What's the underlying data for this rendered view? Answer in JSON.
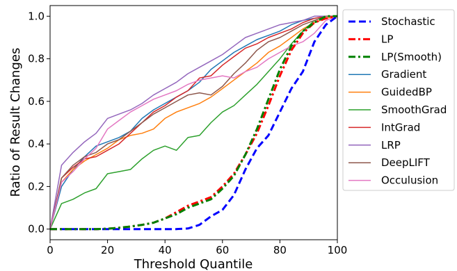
{
  "chart_data": {
    "type": "line",
    "title": "",
    "xlabel": "Threshold Quantile",
    "ylabel": "Ratio of Result Changes",
    "xlim": [
      0,
      100
    ],
    "ylim": [
      -0.05,
      1.05
    ],
    "xticks": [
      "0",
      "20",
      "40",
      "60",
      "80",
      "100"
    ],
    "yticks": [
      "0.0",
      "0.2",
      "0.4",
      "0.6",
      "0.8",
      "1.0"
    ],
    "grid": false,
    "legend_position": "right, outside plot",
    "x": [
      0,
      4,
      8,
      12,
      16,
      20,
      24,
      28,
      32,
      36,
      40,
      44,
      48,
      52,
      56,
      60,
      64,
      68,
      72,
      76,
      80,
      84,
      88,
      92,
      96,
      100
    ],
    "series": [
      {
        "name": "Stochastic",
        "color": "#0000ff",
        "style": "dashed",
        "values": [
          0,
          0,
          0,
          0,
          0,
          0,
          0,
          0,
          0,
          0,
          0,
          0,
          0.003,
          0.02,
          0.06,
          0.09,
          0.16,
          0.28,
          0.38,
          0.44,
          0.55,
          0.66,
          0.74,
          0.88,
          0.96,
          1.0
        ]
      },
      {
        "name": "LP",
        "color": "#ff0000",
        "style": "dashdot",
        "values": [
          0,
          0,
          0,
          0,
          0,
          0.002,
          0.006,
          0.012,
          0.02,
          0.03,
          0.05,
          0.08,
          0.11,
          0.13,
          0.15,
          0.2,
          0.26,
          0.35,
          0.45,
          0.58,
          0.72,
          0.84,
          0.92,
          0.97,
          0.99,
          1.0
        ]
      },
      {
        "name": "LP(Smooth)",
        "color": "#008000",
        "style": "dashdot",
        "values": [
          0,
          0,
          0,
          0,
          0,
          0.002,
          0.006,
          0.012,
          0.02,
          0.03,
          0.05,
          0.07,
          0.1,
          0.12,
          0.14,
          0.19,
          0.25,
          0.35,
          0.47,
          0.61,
          0.75,
          0.86,
          0.93,
          0.97,
          1.0,
          1.0
        ]
      },
      {
        "name": "Gradient",
        "color": "#1f77b4",
        "style": "solid",
        "values": [
          0,
          0.2,
          0.28,
          0.34,
          0.39,
          0.41,
          0.43,
          0.46,
          0.52,
          0.56,
          0.59,
          0.62,
          0.65,
          0.69,
          0.75,
          0.79,
          0.83,
          0.86,
          0.89,
          0.91,
          0.93,
          0.96,
          0.98,
          0.99,
          1.0,
          1.0
        ]
      },
      {
        "name": "GuidedBP",
        "color": "#ff7f0e",
        "style": "solid",
        "values": [
          0,
          0.22,
          0.28,
          0.32,
          0.35,
          0.38,
          0.42,
          0.44,
          0.45,
          0.47,
          0.52,
          0.55,
          0.57,
          0.59,
          0.62,
          0.66,
          0.7,
          0.74,
          0.78,
          0.83,
          0.86,
          0.9,
          0.94,
          0.97,
          0.99,
          1.0
        ]
      },
      {
        "name": "SmoothGrad",
        "color": "#2ca02c",
        "style": "solid",
        "values": [
          0,
          0.12,
          0.14,
          0.17,
          0.19,
          0.26,
          0.27,
          0.28,
          0.33,
          0.37,
          0.39,
          0.37,
          0.43,
          0.44,
          0.5,
          0.55,
          0.58,
          0.63,
          0.68,
          0.74,
          0.8,
          0.87,
          0.93,
          0.98,
          1.0,
          1.0
        ]
      },
      {
        "name": "IntGrad",
        "color": "#d62728",
        "style": "solid",
        "values": [
          0,
          0.24,
          0.29,
          0.33,
          0.34,
          0.37,
          0.4,
          0.45,
          0.5,
          0.55,
          0.58,
          0.62,
          0.65,
          0.71,
          0.72,
          0.77,
          0.81,
          0.85,
          0.87,
          0.9,
          0.92,
          0.94,
          0.97,
          0.99,
          1.0,
          1.0
        ]
      },
      {
        "name": "LRP",
        "color": "#9467bd",
        "style": "solid",
        "values": [
          0,
          0.3,
          0.36,
          0.41,
          0.45,
          0.52,
          0.54,
          0.56,
          0.59,
          0.63,
          0.66,
          0.69,
          0.73,
          0.76,
          0.79,
          0.82,
          0.86,
          0.9,
          0.92,
          0.94,
          0.96,
          0.97,
          0.98,
          1.0,
          1.0,
          1.0
        ]
      },
      {
        "name": "DeepLIFT",
        "color": "#8c564b",
        "style": "solid",
        "values": [
          0,
          0.24,
          0.3,
          0.34,
          0.36,
          0.4,
          0.42,
          0.46,
          0.5,
          0.54,
          0.57,
          0.6,
          0.63,
          0.64,
          0.63,
          0.67,
          0.73,
          0.78,
          0.84,
          0.88,
          0.9,
          0.93,
          0.96,
          0.98,
          1.0,
          1.0
        ]
      },
      {
        "name": "Occulusion",
        "color": "#e377c2",
        "style": "solid",
        "values": [
          0,
          0.22,
          0.27,
          0.33,
          0.38,
          0.47,
          0.51,
          0.55,
          0.58,
          0.61,
          0.63,
          0.65,
          0.68,
          0.7,
          0.71,
          0.72,
          0.71,
          0.74,
          0.76,
          0.8,
          0.83,
          0.86,
          0.88,
          0.92,
          0.98,
          1.0
        ]
      }
    ]
  }
}
